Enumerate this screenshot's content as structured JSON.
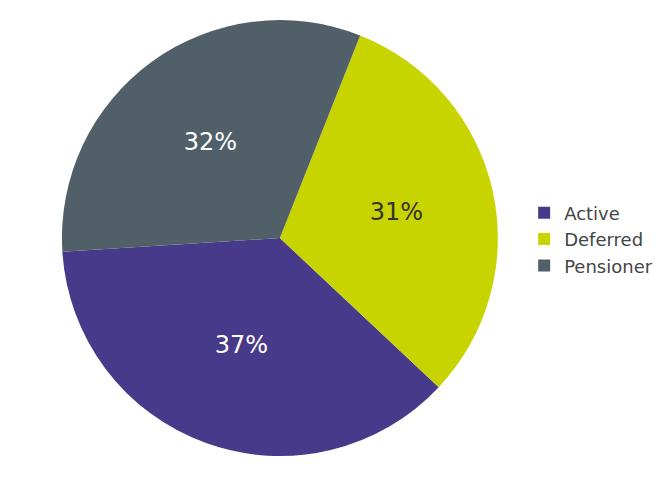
{
  "chart_data": {
    "type": "pie",
    "categories": [
      "Active",
      "Deferred",
      "Pensioner"
    ],
    "values": [
      37,
      31,
      32
    ],
    "value_labels": [
      "37%",
      "31%",
      "32%"
    ],
    "colors": [
      "#483a8a",
      "#c8d400",
      "#515f69"
    ],
    "data_labels": true,
    "legend": "right"
  }
}
